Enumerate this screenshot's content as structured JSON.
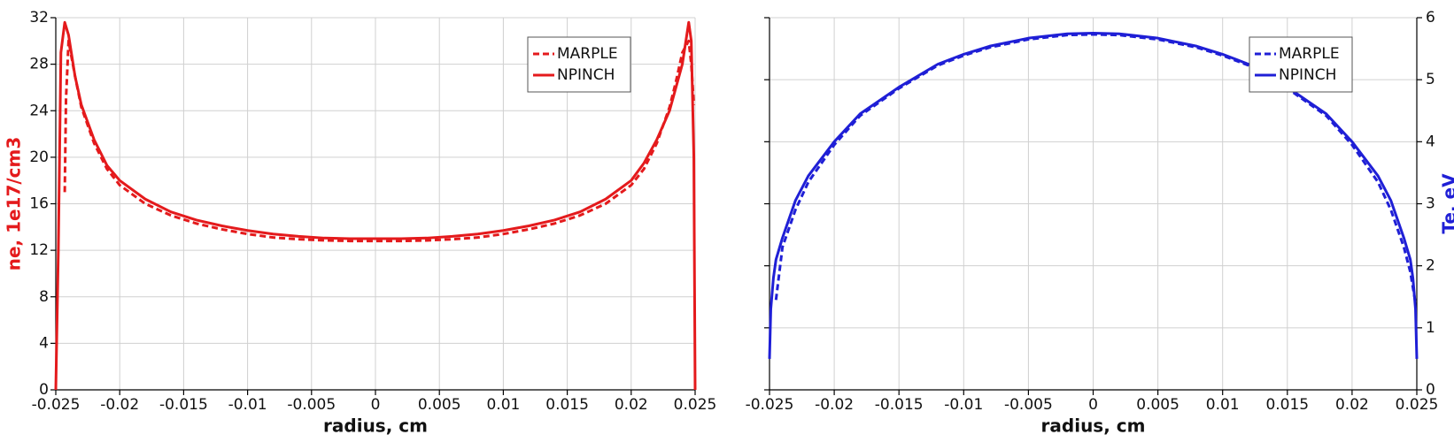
{
  "chart_data": [
    {
      "type": "line",
      "xlabel": "radius, cm",
      "ylabel": "ne, 1e17/cm3",
      "label_color": "#e41a1c",
      "xlim": [
        -0.025,
        0.025
      ],
      "ylim": [
        0,
        32
      ],
      "xticks": [
        -0.025,
        -0.02,
        -0.015,
        -0.01,
        -0.005,
        0,
        0.005,
        0.01,
        0.015,
        0.02,
        0.025
      ],
      "yticks": [
        0,
        4,
        8,
        12,
        16,
        20,
        24,
        28,
        32
      ],
      "grid": true,
      "legend": "upper right",
      "y_axis_side": "left",
      "series": [
        {
          "name": "MARPLE",
          "color": "#e41a1c",
          "linestyle": "dashed",
          "x": [
            -0.0243,
            -0.0242,
            -0.024,
            -0.0235,
            -0.023,
            -0.022,
            -0.021,
            -0.02,
            -0.018,
            -0.016,
            -0.014,
            -0.012,
            -0.01,
            -0.008,
            -0.006,
            -0.004,
            -0.002,
            0,
            0.002,
            0.004,
            0.006,
            0.008,
            0.01,
            0.012,
            0.014,
            0.016,
            0.018,
            0.02,
            0.021,
            0.022,
            0.023,
            0.0235,
            0.024,
            0.0245,
            0.0247,
            0.0249
          ],
          "values": [
            17,
            25,
            30,
            27,
            24.3,
            21.2,
            19,
            17.6,
            16,
            15,
            14.3,
            13.8,
            13.4,
            13.1,
            12.95,
            12.85,
            12.8,
            12.8,
            12.8,
            12.85,
            12.95,
            13.1,
            13.4,
            13.8,
            14.3,
            15,
            16,
            17.6,
            19,
            21.2,
            24.3,
            26.5,
            29,
            30,
            28,
            24.5
          ]
        },
        {
          "name": "NPINCH",
          "color": "#e41a1c",
          "linestyle": "solid",
          "x": [
            -0.025,
            -0.0248,
            -0.0246,
            -0.0243,
            -0.024,
            -0.0235,
            -0.023,
            -0.022,
            -0.021,
            -0.02,
            -0.018,
            -0.016,
            -0.014,
            -0.012,
            -0.01,
            -0.008,
            -0.006,
            -0.004,
            -0.002,
            0,
            0.002,
            0.004,
            0.006,
            0.008,
            0.01,
            0.012,
            0.014,
            0.016,
            0.018,
            0.02,
            0.021,
            0.022,
            0.023,
            0.024,
            0.0245,
            0.0247,
            0.0249,
            0.025
          ],
          "values": [
            0,
            12,
            29,
            31.6,
            30.5,
            27,
            24.5,
            21.5,
            19.3,
            18,
            16.4,
            15.3,
            14.6,
            14.1,
            13.7,
            13.4,
            13.2,
            13.05,
            13,
            13,
            13,
            13.05,
            13.2,
            13.4,
            13.7,
            14.1,
            14.6,
            15.3,
            16.4,
            18,
            19.5,
            21.5,
            24,
            28,
            31.6,
            30,
            20,
            0
          ]
        }
      ]
    },
    {
      "type": "line",
      "xlabel": "radius, cm",
      "ylabel": "Te, eV",
      "label_color": "#1f1fd6",
      "xlim": [
        -0.025,
        0.025
      ],
      "ylim": [
        0,
        6
      ],
      "xticks": [
        -0.025,
        -0.02,
        -0.015,
        -0.01,
        -0.005,
        0,
        0.005,
        0.01,
        0.015,
        0.02,
        0.025
      ],
      "yticks": [
        0,
        1,
        2,
        3,
        4,
        5,
        6
      ],
      "grid": true,
      "legend": "upper right",
      "y_axis_side": "right",
      "series": [
        {
          "name": "MARPLE",
          "color": "#1f1fd6",
          "linestyle": "dashed",
          "x": [
            -0.0245,
            -0.024,
            -0.023,
            -0.022,
            -0.02,
            -0.018,
            -0.015,
            -0.012,
            -0.01,
            -0.008,
            -0.005,
            -0.002,
            0,
            0.002,
            0.005,
            0.008,
            0.01,
            0.012,
            0.015,
            0.018,
            0.02,
            0.022,
            0.023,
            0.024,
            0.0245,
            0.0249
          ],
          "values": [
            1.45,
            2.3,
            2.9,
            3.35,
            3.95,
            4.42,
            4.86,
            5.23,
            5.39,
            5.52,
            5.65,
            5.72,
            5.73,
            5.72,
            5.65,
            5.52,
            5.39,
            5.23,
            4.86,
            4.42,
            3.95,
            3.35,
            2.9,
            2.3,
            1.9,
            1.4
          ]
        },
        {
          "name": "NPINCH",
          "color": "#1f1fd6",
          "linestyle": "solid",
          "x": [
            -0.025,
            -0.0249,
            -0.0247,
            -0.0245,
            -0.024,
            -0.023,
            -0.022,
            -0.02,
            -0.018,
            -0.015,
            -0.012,
            -0.01,
            -0.008,
            -0.005,
            -0.002,
            0,
            0.002,
            0.005,
            0.008,
            0.01,
            0.012,
            0.015,
            0.018,
            0.02,
            0.022,
            0.023,
            0.024,
            0.0245,
            0.0247,
            0.0249,
            0.025
          ],
          "values": [
            0.5,
            1.3,
            1.8,
            2.1,
            2.45,
            3.05,
            3.45,
            4,
            4.45,
            4.88,
            5.25,
            5.41,
            5.54,
            5.67,
            5.74,
            5.75,
            5.74,
            5.67,
            5.54,
            5.41,
            5.25,
            4.88,
            4.45,
            4,
            3.45,
            3.05,
            2.45,
            2.1,
            1.8,
            1.3,
            0.5
          ]
        }
      ]
    }
  ]
}
